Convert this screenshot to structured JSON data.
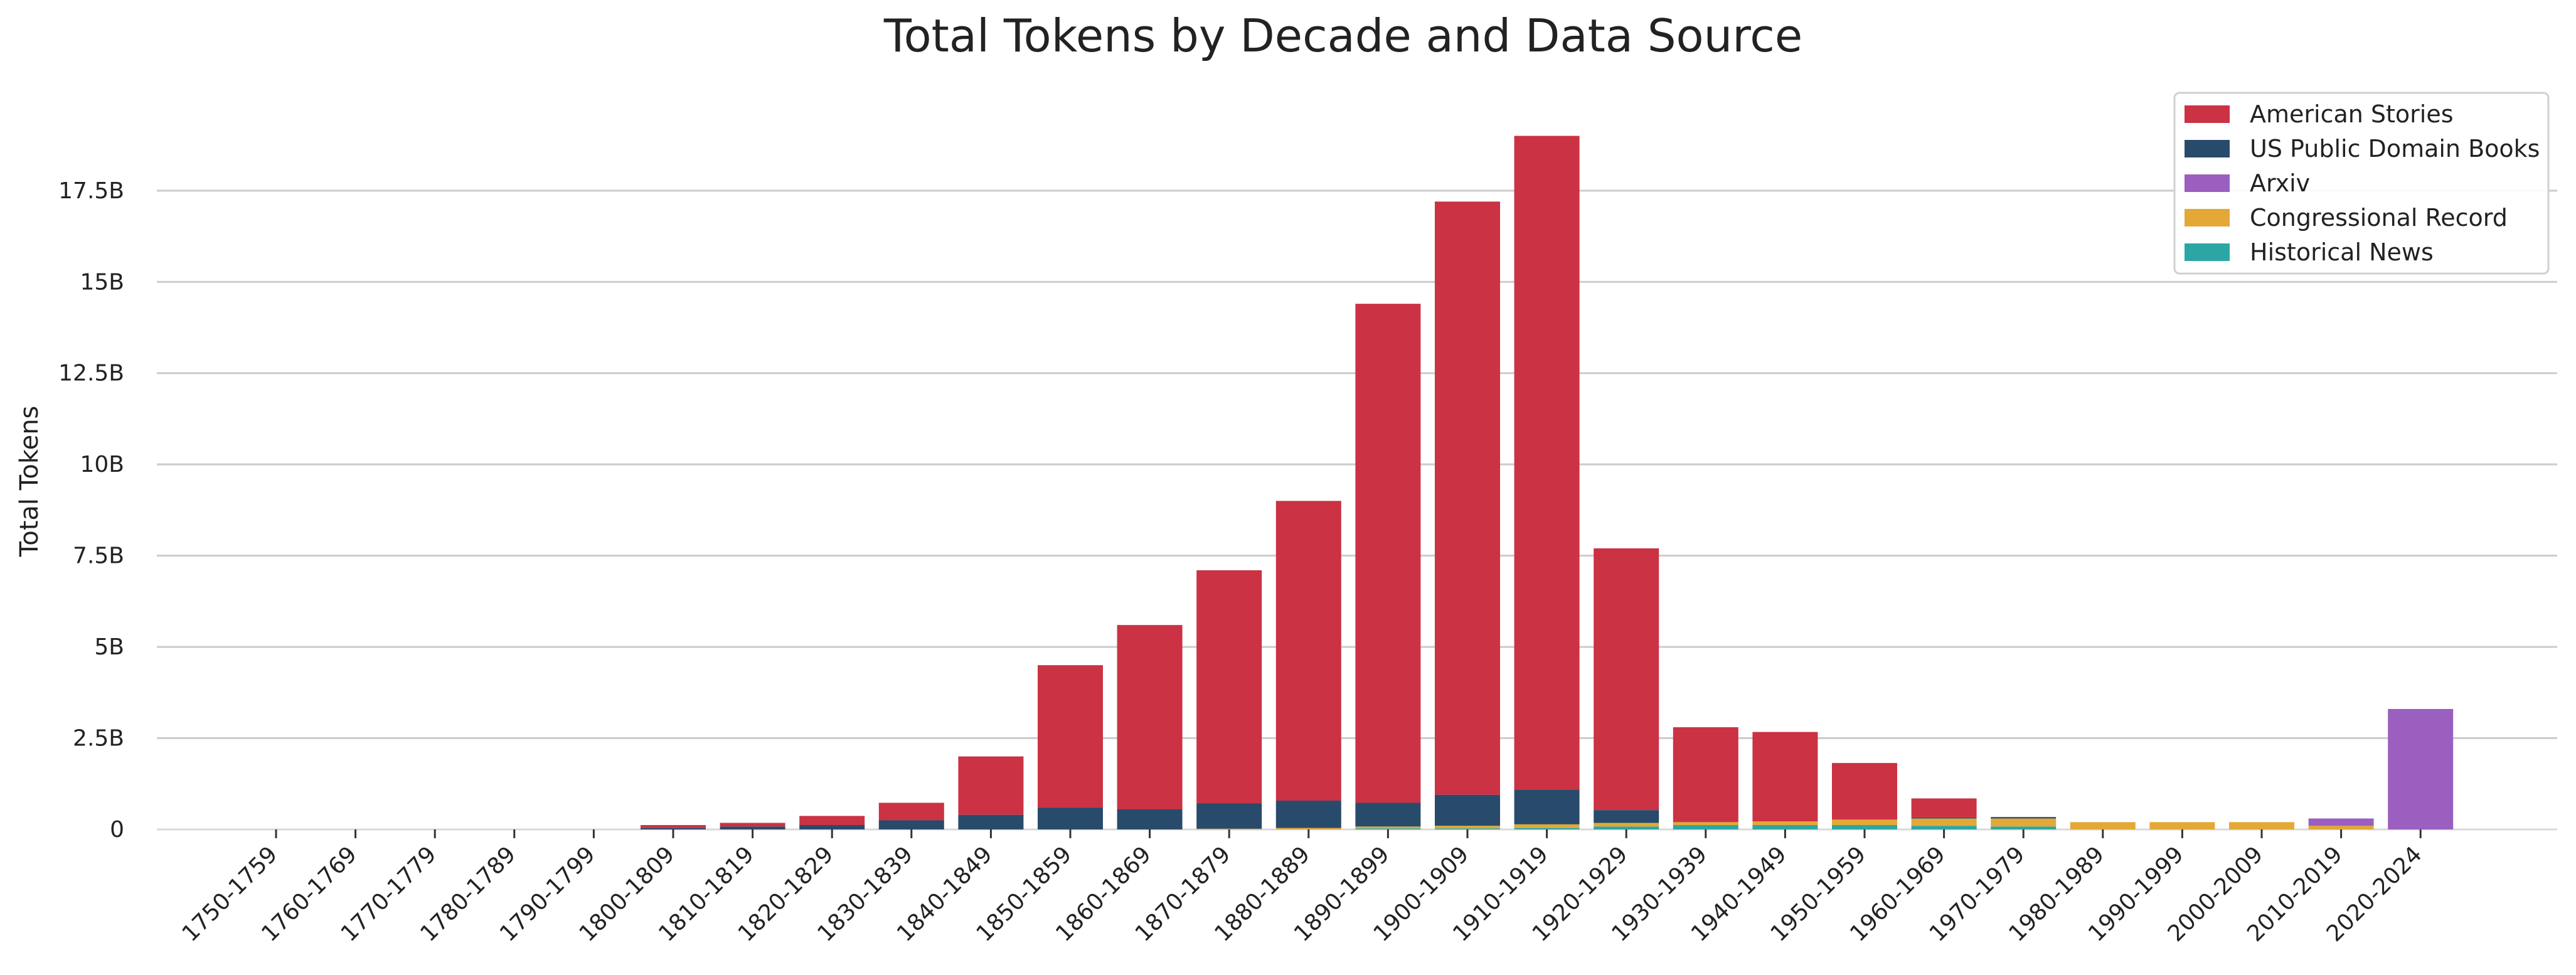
{
  "chart_data": {
    "type": "bar",
    "stacked": true,
    "title": "Total Tokens by Decade and Data Source",
    "xlabel": "",
    "ylabel": "Total Tokens",
    "ylim": [
      0,
      19.8
    ],
    "y_unit": "billions of tokens",
    "y_ticks": [
      0,
      2.5,
      5,
      7.5,
      10,
      12.5,
      15,
      17.5
    ],
    "y_tick_labels": [
      "0",
      "2.5B",
      "5B",
      "7.5B",
      "10B",
      "12.5B",
      "15B",
      "17.5B"
    ],
    "grid": "horizontal",
    "legend_position": "top-right",
    "categories": [
      "1750-1759",
      "1760-1769",
      "1770-1779",
      "1780-1789",
      "1790-1799",
      "1800-1809",
      "1810-1819",
      "1820-1829",
      "1830-1839",
      "1840-1849",
      "1850-1859",
      "1860-1869",
      "1870-1879",
      "1880-1889",
      "1890-1899",
      "1900-1909",
      "1910-1919",
      "1920-1929",
      "1930-1939",
      "1940-1949",
      "1950-1959",
      "1960-1969",
      "1970-1979",
      "1980-1989",
      "1990-1999",
      "2000-2009",
      "2010-2019",
      "2020-2024"
    ],
    "series": [
      {
        "name": "Historical News",
        "color": "#2ca6a4",
        "values": [
          0,
          0,
          0,
          0,
          0,
          0,
          0,
          0,
          0,
          0,
          0,
          0,
          0,
          0,
          0.03,
          0.03,
          0.04,
          0.08,
          0.12,
          0.12,
          0.12,
          0.1,
          0.08,
          0,
          0,
          0,
          0,
          0
        ]
      },
      {
        "name": "Congressional Record",
        "color": "#e3a835",
        "values": [
          0,
          0,
          0,
          0,
          0,
          0,
          0,
          0,
          0,
          0,
          0,
          0,
          0.02,
          0.04,
          0.05,
          0.07,
          0.1,
          0.1,
          0.08,
          0.1,
          0.15,
          0.2,
          0.22,
          0.2,
          0.2,
          0.2,
          0.1,
          0
        ]
      },
      {
        "name": "Arxiv",
        "color": "#9b5fc0",
        "values": [
          0,
          0,
          0,
          0,
          0,
          0,
          0,
          0,
          0,
          0,
          0,
          0,
          0,
          0,
          0,
          0,
          0,
          0,
          0,
          0,
          0,
          0,
          0,
          0,
          0,
          0,
          0.2,
          3.3
        ]
      },
      {
        "name": "US Public Domain Books",
        "color": "#284b6b",
        "values": [
          0,
          0,
          0,
          0,
          0,
          0.04,
          0.08,
          0.12,
          0.25,
          0.4,
          0.6,
          0.55,
          0.7,
          0.75,
          0.65,
          0.85,
          0.95,
          0.35,
          0,
          0,
          0,
          0.03,
          0.04,
          0,
          0,
          0,
          0,
          0
        ]
      },
      {
        "name": "American Stories",
        "color": "#cb3243",
        "values": [
          0,
          0,
          0,
          0,
          0,
          0.08,
          0.1,
          0.25,
          0.48,
          1.6,
          3.9,
          5.05,
          6.38,
          8.21,
          13.67,
          16.25,
          17.91,
          7.17,
          2.6,
          2.45,
          1.55,
          0.52,
          0,
          0,
          0,
          0,
          0,
          0
        ]
      }
    ],
    "legend": [
      "American Stories",
      "US Public Domain Books",
      "Arxiv",
      "Congressional Record",
      "Historical News"
    ]
  }
}
